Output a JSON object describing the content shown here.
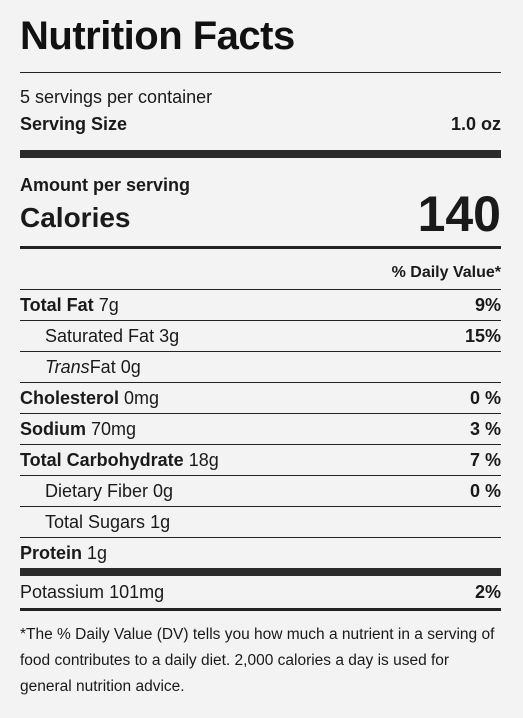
{
  "title": "Nutrition Facts",
  "servings_per_container": "5 servings per container",
  "serving_size": {
    "label": "Serving Size",
    "value": "1.0 oz"
  },
  "amount_per_serving": "Amount per serving",
  "calories": {
    "label": "Calories",
    "value": "140"
  },
  "daily_value_header": "% Daily Value*",
  "rows": [
    {
      "label": "Total Fat",
      "amount": "7g",
      "dv": "9%"
    },
    {
      "label": "Saturated Fat",
      "amount": "3g",
      "dv": "15%"
    },
    {
      "label_italic": "Trans",
      "label": "Fat",
      "amount": "0g",
      "dv": ""
    },
    {
      "label": "Cholesterol",
      "amount": "0mg",
      "dv": "0 %"
    },
    {
      "label": "Sodium",
      "amount": "70mg",
      "dv": "3 %"
    },
    {
      "label": "Total Carbohydrate",
      "amount": "18g",
      "dv": "7 %"
    },
    {
      "label": "Dietary Fiber",
      "amount": "0g",
      "dv": "0 %"
    },
    {
      "label": "Total Sugars",
      "amount": "1g",
      "dv": ""
    },
    {
      "label": "Protein",
      "amount": "1g",
      "dv": ""
    },
    {
      "label": "Potassium",
      "amount": "101mg",
      "dv": "2%"
    }
  ],
  "footnote": "*The % Daily Value (DV) tells you how much a nutrient in a serving of food contributes to a daily diet. 2,000 calories a day is used for general nutrition advice."
}
